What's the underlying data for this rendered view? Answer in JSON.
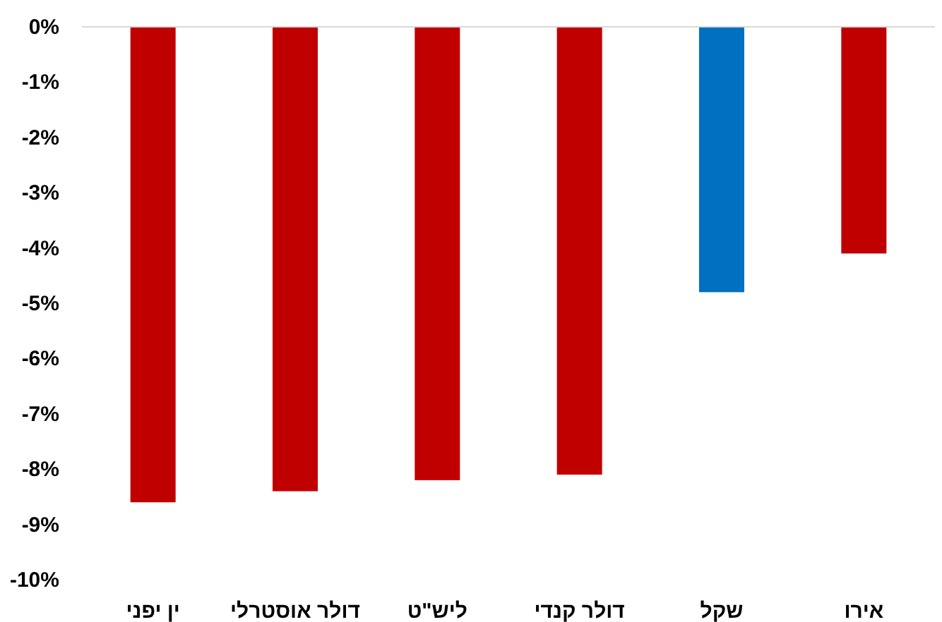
{
  "chart_data": {
    "type": "bar",
    "categories": [
      "ין יפני",
      "דולר אוסטרלי",
      "ליש\"ט",
      "דולר קנדי",
      "שקל",
      "אירו"
    ],
    "values": [
      -8.6,
      -8.4,
      -8.2,
      -8.1,
      -4.8,
      -4.1
    ],
    "colors": [
      "#c00000",
      "#c00000",
      "#c00000",
      "#c00000",
      "#0070c0",
      "#c00000"
    ],
    "ylim": [
      -10,
      0
    ],
    "yticks": [
      {
        "value": 0,
        "label": "0%"
      },
      {
        "value": -1,
        "label": "-1%"
      },
      {
        "value": -2,
        "label": "-2%"
      },
      {
        "value": -3,
        "label": "-3%"
      },
      {
        "value": -4,
        "label": "-4%"
      },
      {
        "value": -5,
        "label": "-5%"
      },
      {
        "value": -6,
        "label": "-6%"
      },
      {
        "value": -7,
        "label": "-7%"
      },
      {
        "value": -8,
        "label": "-8%"
      },
      {
        "value": -9,
        "label": "-9%"
      },
      {
        "value": -10,
        "label": "-10%"
      }
    ]
  }
}
